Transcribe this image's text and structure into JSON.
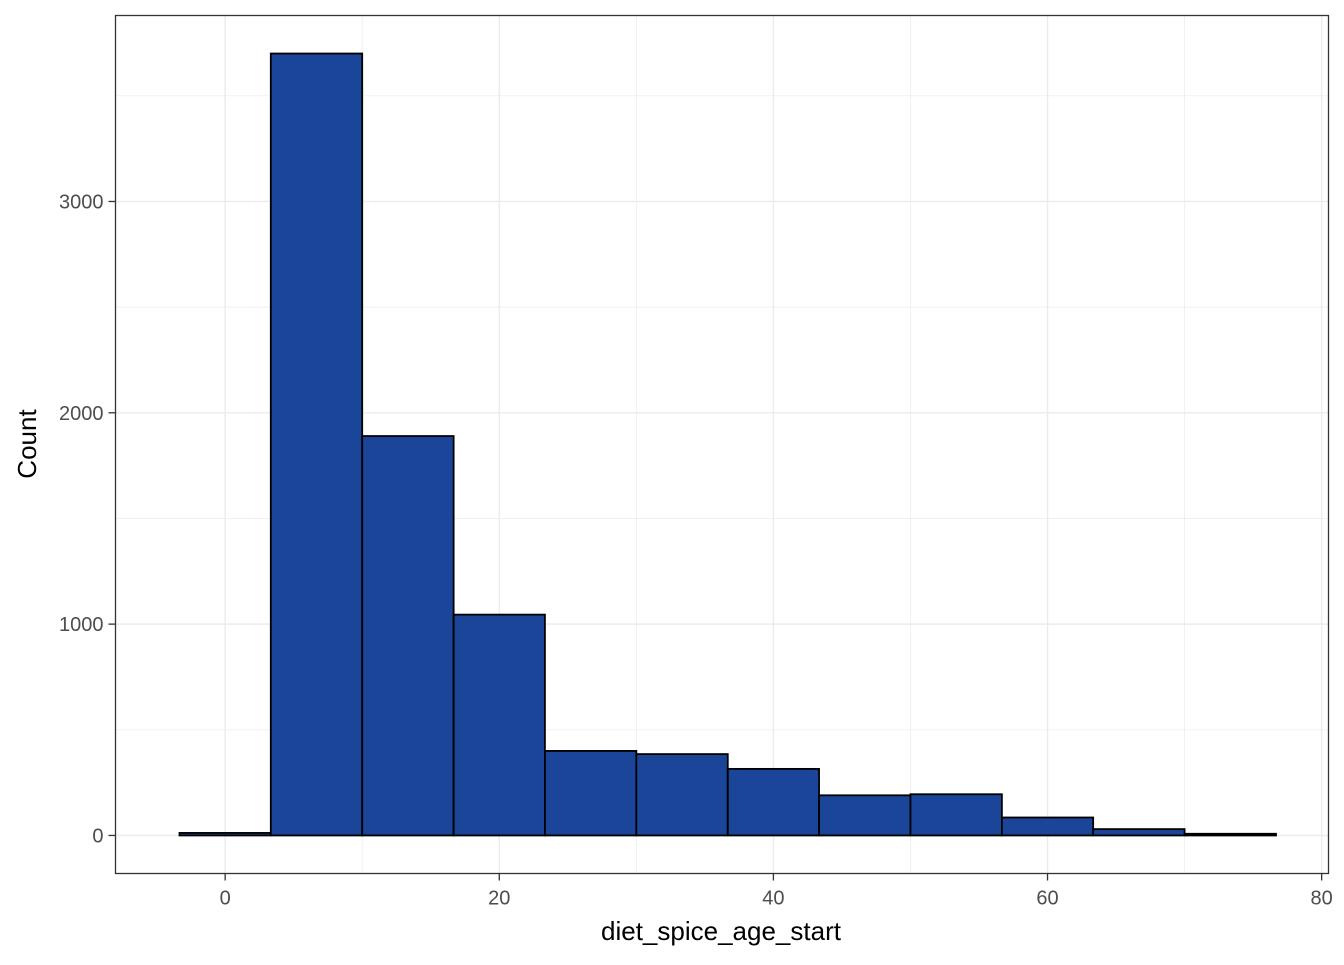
{
  "chart_data": {
    "type": "bar",
    "subtype": "histogram",
    "title": "",
    "xlabel": "diet_spice_age_start",
    "ylabel": "Count",
    "xlim": [
      -8,
      80.5
    ],
    "ylim": [
      -180,
      3880
    ],
    "x_ticks": [
      0,
      20,
      40,
      60,
      80
    ],
    "x_tick_labels": [
      "0",
      "20",
      "40",
      "60",
      "80"
    ],
    "y_ticks": [
      0,
      1000,
      2000,
      3000
    ],
    "y_tick_labels": [
      "0",
      "1000",
      "2000",
      "3000"
    ],
    "x_minor_ticks": [
      10,
      30,
      50,
      70
    ],
    "y_minor_ticks": [
      500,
      1500,
      2500,
      3500
    ],
    "grid": true,
    "bins": [
      {
        "x0": -3.33,
        "x1": 3.33,
        "count": 12
      },
      {
        "x0": 3.33,
        "x1": 10.0,
        "count": 3700
      },
      {
        "x0": 10.0,
        "x1": 16.67,
        "count": 1890
      },
      {
        "x0": 16.67,
        "x1": 23.33,
        "count": 1045
      },
      {
        "x0": 23.33,
        "x1": 30.0,
        "count": 400
      },
      {
        "x0": 30.0,
        "x1": 36.67,
        "count": 385
      },
      {
        "x0": 36.67,
        "x1": 43.33,
        "count": 315
      },
      {
        "x0": 43.33,
        "x1": 50.0,
        "count": 190
      },
      {
        "x0": 50.0,
        "x1": 56.67,
        "count": 195
      },
      {
        "x0": 56.67,
        "x1": 63.33,
        "count": 85
      },
      {
        "x0": 63.33,
        "x1": 70.0,
        "count": 30
      },
      {
        "x0": 70.0,
        "x1": 76.67,
        "count": 8
      }
    ],
    "colors": {
      "fill": "#1A4599",
      "outline": "#000000",
      "grid": "#EBEBEB",
      "panel_border": "#333333",
      "tick_text": "#4D4D4D"
    }
  }
}
